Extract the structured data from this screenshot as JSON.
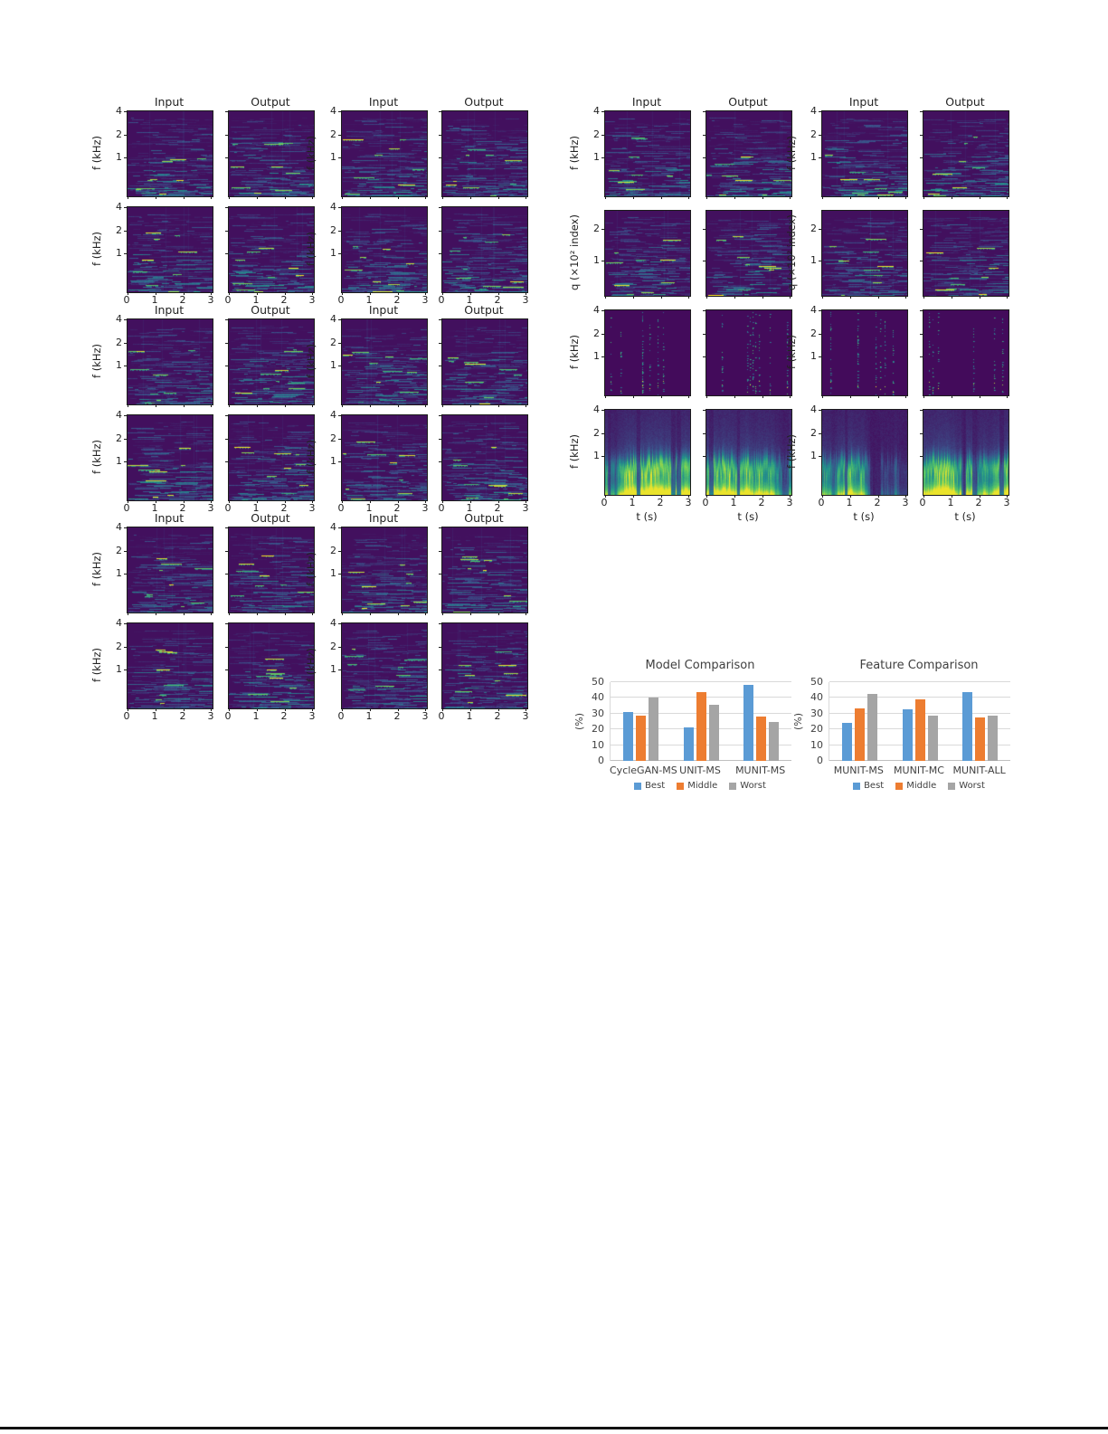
{
  "figure": {
    "col_headers": [
      "Input",
      "Output"
    ],
    "y_axis_f": {
      "label": "f (kHz)",
      "ticks": [
        "4",
        "2",
        "1"
      ]
    },
    "y_axis_q": {
      "label": "q (×10² index)",
      "ticks": [
        "2",
        "1"
      ]
    },
    "x_axis": {
      "label": "t (s)",
      "ticks": [
        "0",
        "1",
        "2",
        "3"
      ]
    },
    "left_block": {
      "groups": 3,
      "rows_per_group": 2,
      "columns": 4,
      "content": "spectrogram input/output pairs"
    },
    "right_block": {
      "rows": 4,
      "columns": 4,
      "row_axes": [
        "f",
        "q",
        "f",
        "f"
      ],
      "row_styles": [
        "streaks",
        "qstreaks",
        "onsets",
        "mel"
      ]
    }
  },
  "chart_data": [
    {
      "type": "bar",
      "title": "Model Comparison",
      "categories": [
        "CycleGAN-MS",
        "UNIT-MS",
        "MUNIT-MS"
      ],
      "series": [
        {
          "name": "Best",
          "color": "#5B9BD5",
          "values": [
            31,
            21.5,
            48
          ]
        },
        {
          "name": "Middle",
          "color": "#ED7D31",
          "values": [
            29,
            43.5,
            28
          ]
        },
        {
          "name": "Worst",
          "color": "#A5A5A5",
          "values": [
            40.5,
            35.5,
            24.5
          ]
        }
      ],
      "ylabel": "(%)",
      "ylim": [
        0,
        50
      ],
      "yticks": [
        0,
        10,
        20,
        30,
        40,
        50
      ],
      "grid": true,
      "legend_position": "bottom"
    },
    {
      "type": "bar",
      "title": "Feature Comparison",
      "categories": [
        "MUNIT-MS",
        "MUNIT-MC",
        "MUNIT-ALL"
      ],
      "series": [
        {
          "name": "Best",
          "color": "#5B9BD5",
          "values": [
            24,
            32.5,
            43.5
          ]
        },
        {
          "name": "Middle",
          "color": "#ED7D31",
          "values": [
            33.5,
            39,
            27.5
          ]
        },
        {
          "name": "Worst",
          "color": "#A5A5A5",
          "values": [
            42.5,
            28.5,
            29
          ]
        }
      ],
      "ylabel": "(%)",
      "ylim": [
        0,
        50
      ],
      "yticks": [
        0,
        10,
        20,
        30,
        40,
        50
      ],
      "grid": true,
      "legend_position": "bottom"
    }
  ],
  "colors": {
    "gridline": "#D9D9D9",
    "axis_zero_line": "#BFBFBF",
    "axis_text": "#404040",
    "spectrogram_frame": "#1C1C1C"
  }
}
